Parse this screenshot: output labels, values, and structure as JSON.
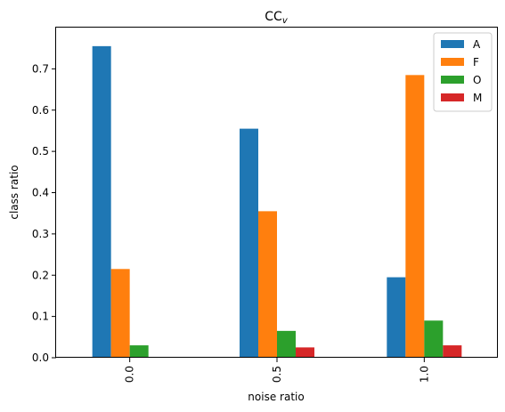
{
  "chart_data": {
    "type": "bar",
    "title_main": "CC",
    "title_sub": "v",
    "xlabel": "noise ratio",
    "ylabel": "class ratio",
    "categories": [
      "0.0",
      "0.5",
      "1.0"
    ],
    "ylim": [
      0,
      0.8
    ],
    "yticks": [
      0.0,
      0.1,
      0.2,
      0.3,
      0.4,
      0.5,
      0.6,
      0.7
    ],
    "ytick_labels": [
      "0.0",
      "0.1",
      "0.2",
      "0.3",
      "0.4",
      "0.5",
      "0.6",
      "0.7"
    ],
    "grid": false,
    "legend_position": "top-right",
    "series": [
      {
        "name": "A",
        "color": "#1f77b4",
        "values": [
          0.755,
          0.555,
          0.195
        ]
      },
      {
        "name": "F",
        "color": "#ff7f0e",
        "values": [
          0.215,
          0.355,
          0.685
        ]
      },
      {
        "name": "O",
        "color": "#2ca02c",
        "values": [
          0.03,
          0.065,
          0.09
        ]
      },
      {
        "name": "M",
        "color": "#d62728",
        "values": [
          0.0,
          0.025,
          0.03
        ]
      }
    ]
  }
}
